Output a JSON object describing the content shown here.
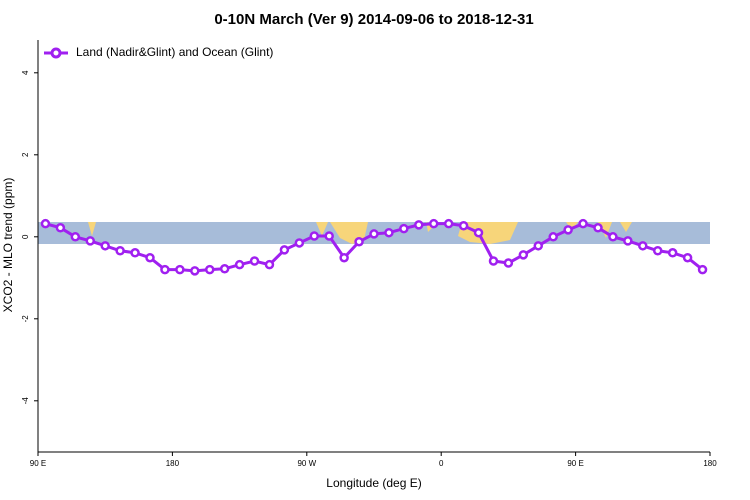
{
  "chart_data": {
    "type": "line",
    "title": "0-10N March (Ver 9)   2014-09-06 to 2018-12-31",
    "x_label": "Longitude (deg E)",
    "y_label": "XCO2 - MLO trend (ppm)",
    "x": [
      95,
      105,
      115,
      125,
      135,
      145,
      155,
      165,
      175,
      185,
      195,
      205,
      215,
      225,
      235,
      245,
      255,
      265,
      275,
      285,
      295,
      305,
      315,
      325,
      335,
      345,
      355,
      365,
      375,
      385,
      395,
      405,
      415,
      425,
      435,
      445,
      455,
      465,
      475,
      485,
      495,
      505,
      515,
      525,
      535
    ],
    "series": [
      {
        "name": "Land (Nadir&Glint) and Ocean (Glint)",
        "color": "#a020f0",
        "values": [
          0.32,
          0.22,
          0.0,
          -0.1,
          -0.22,
          -0.34,
          -0.39,
          -0.51,
          -0.8,
          -0.8,
          -0.83,
          -0.8,
          -0.78,
          -0.68,
          -0.59,
          -0.68,
          -0.32,
          -0.15,
          0.02,
          0.02,
          -0.51,
          -0.12,
          0.07,
          0.1,
          0.2,
          0.29,
          0.32,
          0.32,
          0.27,
          0.1,
          -0.59,
          -0.64,
          -0.44,
          -0.22,
          0.0,
          0.17,
          0.32,
          0.22,
          0.0,
          -0.1,
          -0.22,
          -0.34,
          -0.39,
          -0.51,
          -0.8
        ]
      }
    ],
    "xlim": [
      90,
      540
    ],
    "ylim": [
      -5.2,
      4.8
    ],
    "xticks": [
      {
        "value": 90,
        "label": "90 E"
      },
      180,
      {
        "value": 270,
        "label": "90 W"
      },
      {
        "value": 360,
        "label": "0"
      },
      {
        "value": 450,
        "label": "90 E"
      },
      {
        "value": 540,
        "label": "180"
      }
    ],
    "yticks": [
      -4,
      -2,
      0,
      2,
      4
    ],
    "legend": "top-left"
  }
}
